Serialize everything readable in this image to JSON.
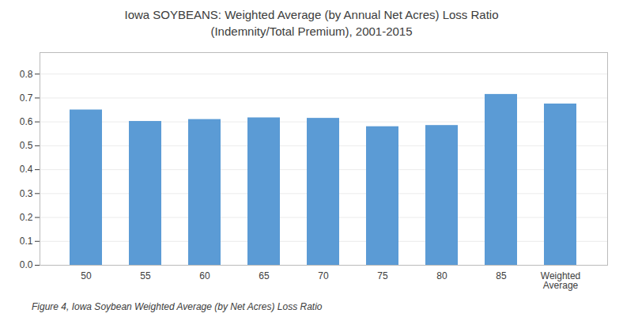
{
  "chart_data": {
    "type": "bar",
    "title": "Iowa SOYBEANS: Weighted Average (by Annual Net Acres) Loss Ratio\n(Indemnity/Total Premium), 2001-2015",
    "caption": "Figure 4, Iowa Soybean Weighted Average (by Net Acres) Loss Ratio",
    "categories": [
      "50",
      "55",
      "60",
      "65",
      "70",
      "75",
      "80",
      "85",
      "Weighted\nAverage"
    ],
    "values": [
      0.65,
      0.602,
      0.61,
      0.617,
      0.615,
      0.58,
      0.585,
      0.715,
      0.675
    ],
    "color": "#5B9BD5",
    "ylim": [
      0,
      0.89
    ],
    "yticks": [
      {
        "value": 0,
        "label": "0.0"
      },
      0.1,
      0.2,
      0.3,
      0.4,
      0.5,
      0.6,
      0.7,
      0.8
    ],
    "grid": true
  }
}
